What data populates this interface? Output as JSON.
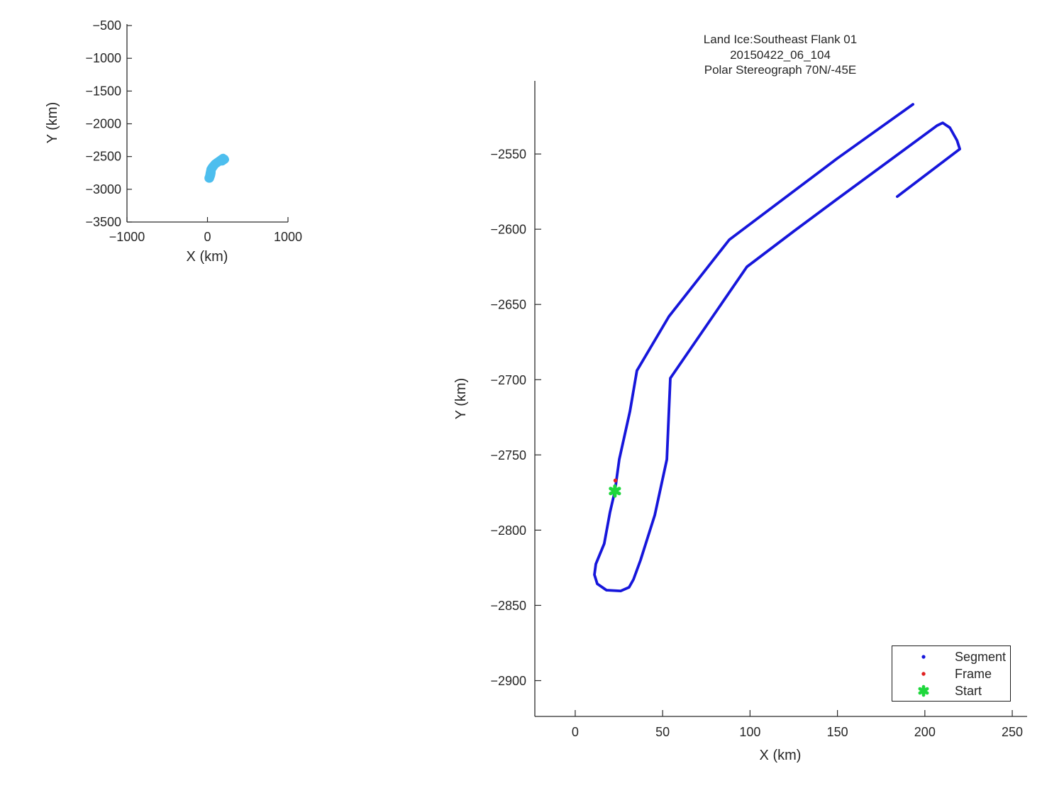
{
  "figure": {
    "background": "#ffffff",
    "axis_color": "#2b2b2b",
    "text_color": "#262626"
  },
  "chart_data": {
    "type": "line",
    "description": "Flight segment track plotted in polar stereographic km coordinates; small overview plot top-left, large detail plot right",
    "track_points_km": [
      [
        193.2,
        -2517.0
      ],
      [
        149.8,
        -2553.0
      ],
      [
        88.1,
        -2607.0
      ],
      [
        53.6,
        -2658.0
      ],
      [
        35.3,
        -2694.0
      ],
      [
        31.3,
        -2721.0
      ],
      [
        25.2,
        -2753.0
      ],
      [
        22.7,
        -2774.0
      ],
      [
        19.9,
        -2788.0
      ],
      [
        16.6,
        -2809.0
      ],
      [
        11.8,
        -2822.5
      ],
      [
        11.0,
        -2829.6
      ],
      [
        12.6,
        -2835.7
      ],
      [
        17.9,
        -2839.9
      ],
      [
        26.0,
        -2840.4
      ],
      [
        30.8,
        -2838.0
      ],
      [
        33.3,
        -2832.8
      ],
      [
        37.3,
        -2820.1
      ],
      [
        45.5,
        -2790.0
      ],
      [
        52.4,
        -2753.0
      ],
      [
        54.4,
        -2699.0
      ],
      [
        98.2,
        -2625.0
      ],
      [
        125.4,
        -2601.0
      ],
      [
        149.8,
        -2580.0
      ],
      [
        207.0,
        -2531.1
      ],
      [
        210.2,
        -2529.3
      ],
      [
        214.3,
        -2532.5
      ],
      [
        218.4,
        -2541.0
      ],
      [
        220.0,
        -2546.7
      ],
      [
        184.2,
        -2578.3
      ]
    ],
    "frame_point_km": [
      23.0,
      -2767.0
    ],
    "start_point_km": [
      22.7,
      -2774.0
    ],
    "main_plot": {
      "title_lines": [
        "Land Ice:Southeast Flank 01",
        "20150422_06_104",
        "Polar Stereograph 70N/-45E"
      ],
      "xlabel": "X (km)",
      "ylabel": "Y (km)",
      "xlim": [
        -23.1,
        258.5
      ],
      "ylim_top_bottom": [
        -2501.4,
        -2923.8
      ],
      "xticks": [
        0,
        50,
        100,
        150,
        200,
        250
      ],
      "yticks": [
        -2550,
        -2600,
        -2650,
        -2700,
        -2750,
        -2800,
        -2850,
        -2900
      ],
      "grid": false,
      "line_color": "#1616DB",
      "frame_color": "#E02020",
      "start_color": "#1ED73C",
      "legend": {
        "position": "bottom-right",
        "entries": [
          {
            "label": "Segment",
            "marker": "dot",
            "color": "#1616DB"
          },
          {
            "label": "Frame",
            "marker": "dot",
            "color": "#E02020"
          },
          {
            "label": "Start",
            "marker": "asterisk",
            "color": "#1ED73C"
          }
        ]
      }
    },
    "overview_plot": {
      "xlabel": "X (km)",
      "ylabel": "Y (km)",
      "xlim": [
        -1000,
        1000
      ],
      "ylim_top_bottom": [
        -478,
        -3500
      ],
      "xticks": [
        -1000,
        0,
        1000
      ],
      "yticks": [
        -500,
        -1000,
        -1500,
        -2000,
        -2500,
        -3000,
        -3500
      ],
      "grid": false,
      "line_color": "#4DBEEE"
    }
  }
}
